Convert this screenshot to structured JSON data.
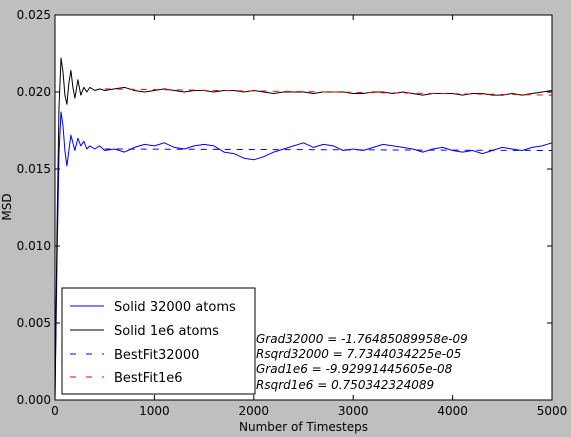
{
  "chart_data": {
    "type": "line",
    "title": "",
    "xlabel": "Number of Timesteps",
    "ylabel": "MSD",
    "xlim": [
      0,
      5000
    ],
    "ylim": [
      0.0,
      0.025
    ],
    "x_ticks": [
      0,
      1000,
      2000,
      3000,
      4000,
      5000
    ],
    "x_tick_labels": [
      "0",
      "1000",
      "2000",
      "3000",
      "4000",
      "5000"
    ],
    "y_ticks": [
      0.0,
      0.005,
      0.01,
      0.015,
      0.02,
      0.025
    ],
    "y_tick_labels": [
      "0.000",
      "0.005",
      "0.010",
      "0.015",
      "0.020",
      "0.025"
    ],
    "grid": false,
    "legend_position": "lower-left",
    "series": [
      {
        "name": "Solid 32000 atoms",
        "color": "#0000ff",
        "style": "solid",
        "x": [
          0,
          20,
          40,
          60,
          80,
          100,
          120,
          140,
          160,
          180,
          200,
          230,
          260,
          290,
          320,
          350,
          400,
          450,
          500,
          600,
          700,
          800,
          900,
          1000,
          1100,
          1200,
          1300,
          1400,
          1500,
          1600,
          1700,
          1800,
          1900,
          2000,
          2100,
          2200,
          2300,
          2400,
          2500,
          2600,
          2700,
          2800,
          2900,
          3000,
          3100,
          3200,
          3300,
          3400,
          3500,
          3600,
          3700,
          3800,
          3900,
          4000,
          4100,
          4200,
          4300,
          4400,
          4500,
          4600,
          4700,
          4800,
          4900,
          5000
        ],
        "y": [
          0.0,
          0.009,
          0.016,
          0.0187,
          0.0178,
          0.0162,
          0.0152,
          0.0162,
          0.0172,
          0.0167,
          0.0162,
          0.017,
          0.0165,
          0.0168,
          0.0163,
          0.0165,
          0.0163,
          0.0165,
          0.0162,
          0.0163,
          0.0161,
          0.0164,
          0.0166,
          0.0165,
          0.0167,
          0.0164,
          0.0163,
          0.0165,
          0.0166,
          0.0165,
          0.0161,
          0.016,
          0.0157,
          0.0156,
          0.0158,
          0.0161,
          0.0163,
          0.0165,
          0.0167,
          0.0164,
          0.0166,
          0.0165,
          0.0162,
          0.0163,
          0.0162,
          0.0164,
          0.0166,
          0.0165,
          0.0164,
          0.0163,
          0.0161,
          0.0163,
          0.0164,
          0.0162,
          0.0161,
          0.0162,
          0.016,
          0.0162,
          0.0164,
          0.0163,
          0.0162,
          0.0164,
          0.0165,
          0.0167
        ]
      },
      {
        "name": "Solid 1e6 atoms",
        "color": "#000000",
        "style": "solid",
        "x": [
          0,
          20,
          40,
          60,
          80,
          100,
          120,
          140,
          160,
          180,
          200,
          230,
          260,
          290,
          320,
          350,
          400,
          450,
          500,
          600,
          700,
          800,
          900,
          1000,
          1100,
          1200,
          1300,
          1400,
          1500,
          1600,
          1700,
          1800,
          1900,
          2000,
          2100,
          2200,
          2300,
          2400,
          2500,
          2600,
          2700,
          2800,
          2900,
          3000,
          3100,
          3200,
          3300,
          3400,
          3500,
          3600,
          3700,
          3800,
          3900,
          4000,
          4100,
          4200,
          4300,
          4400,
          4500,
          4600,
          4700,
          4800,
          4900,
          5000
        ],
        "y": [
          0.0,
          0.011,
          0.019,
          0.0222,
          0.0213,
          0.0198,
          0.0192,
          0.0206,
          0.0214,
          0.0203,
          0.0196,
          0.0208,
          0.0198,
          0.0203,
          0.02,
          0.0203,
          0.0201,
          0.0202,
          0.0201,
          0.0202,
          0.0203,
          0.0201,
          0.02,
          0.0201,
          0.0202,
          0.0201,
          0.02,
          0.0201,
          0.0201,
          0.02,
          0.0201,
          0.0201,
          0.02,
          0.0201,
          0.02,
          0.0199,
          0.02,
          0.02,
          0.02,
          0.0199,
          0.02,
          0.02,
          0.02,
          0.0199,
          0.0199,
          0.02,
          0.02,
          0.0199,
          0.02,
          0.0199,
          0.0198,
          0.0199,
          0.0199,
          0.0199,
          0.0198,
          0.0199,
          0.0199,
          0.0198,
          0.0198,
          0.0199,
          0.0198,
          0.0199,
          0.02,
          0.0201
        ]
      },
      {
        "name": "BestFit32000",
        "color": "#0000ff",
        "style": "dashed",
        "x": [
          500,
          5000
        ],
        "y": [
          0.0163,
          0.0162
        ]
      },
      {
        "name": "BestFit1e6",
        "color": "#ff0000",
        "style": "dashed",
        "x": [
          500,
          5000
        ],
        "y": [
          0.0202,
          0.0198
        ]
      }
    ],
    "annotations": [
      "Grad32000 = -1.76485089958e-09",
      "Rsqrd32000 = 7.7344034225e-05",
      "Grad1e6 = -9.92991445605e-08",
      "Rsqrd1e6 = 0.750342324089"
    ]
  }
}
